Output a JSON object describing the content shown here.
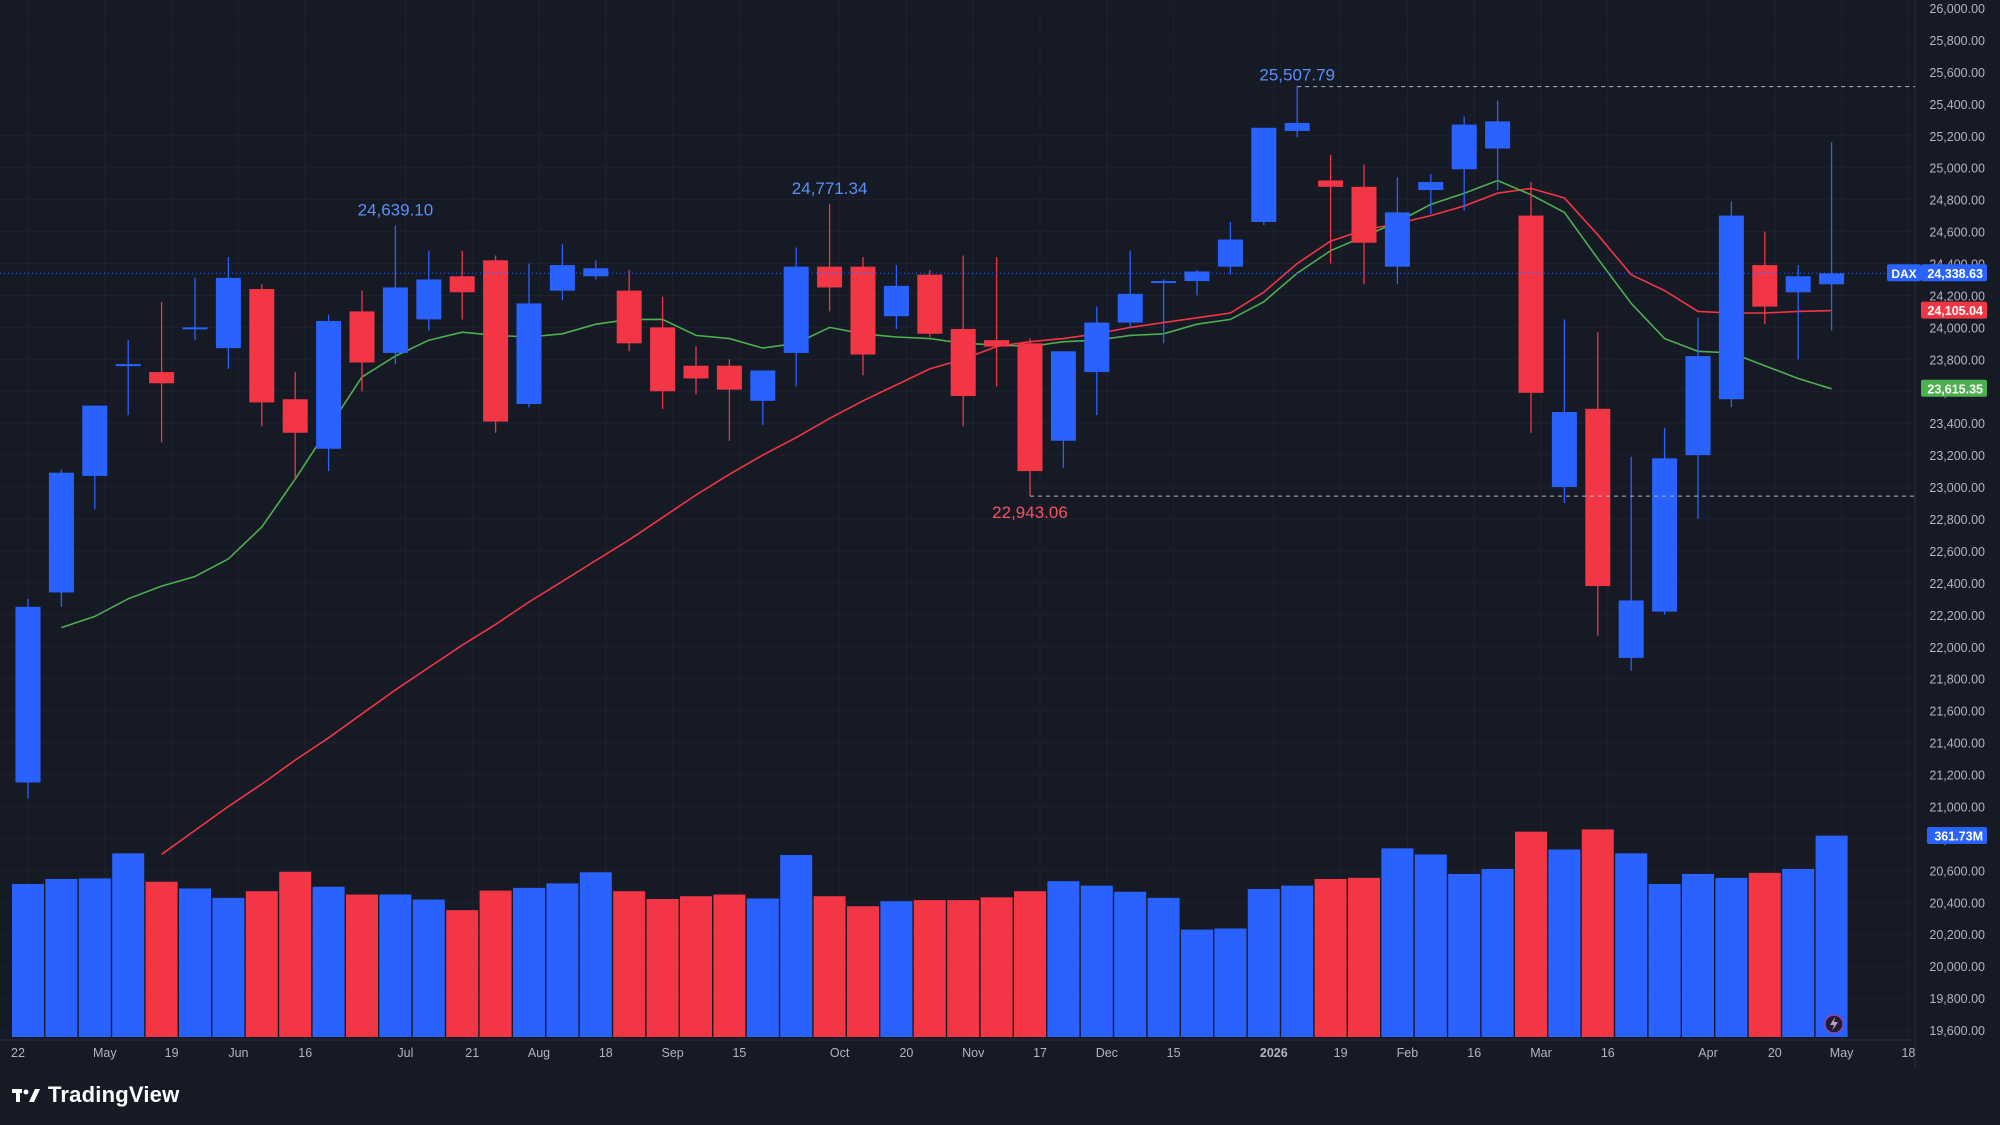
{
  "brand": {
    "name": "TradingView"
  },
  "symbol": "DAX",
  "colors": {
    "bg": "#161a25",
    "up": "#2962ff",
    "down": "#f23645",
    "sma_fast": "#4caf50",
    "sma_slow": "#f23645",
    "axis_text": "#b2b5be",
    "grid": "#1e2230"
  },
  "price_tags": {
    "last": "24,338.63",
    "sma_slow": "24,105.04",
    "sma_fast": "23,615.35",
    "volume": "361.73M"
  },
  "annotations": {
    "high_1": "24,639.10",
    "high_2": "24,771.34",
    "high_3": "25,507.79",
    "low_1": "22,943.06"
  },
  "chart_data": {
    "type": "candlestick",
    "symbol": "DAX",
    "interval": "weekly",
    "y_axis_ticks": [
      "26,000.00",
      "25,800.00",
      "25,600.00",
      "25,400.00",
      "25,200.00",
      "25,000.00",
      "24,800.00",
      "24,600.00",
      "24,400.00",
      "24,200.00",
      "24,000.00",
      "23,800.00",
      "23,600.00",
      "23,400.00",
      "23,200.00",
      "23,000.00",
      "22,800.00",
      "22,600.00",
      "22,400.00",
      "22,200.00",
      "22,000.00",
      "21,800.00",
      "21,600.00",
      "21,400.00",
      "21,200.00",
      "21,000.00",
      "20,800.00",
      "20,600.00",
      "20,400.00",
      "20,200.00",
      "20,000.00",
      "19,800.00",
      "19,600.00"
    ],
    "ylim": [
      19500,
      26050
    ],
    "x_axis_labels": [
      "22",
      "May",
      "19",
      "Jun",
      "16",
      "Jul",
      "21",
      "Aug",
      "18",
      "Sep",
      "15",
      "Oct",
      "20",
      "Nov",
      "17",
      "Dec",
      "15",
      "2026",
      "19",
      "Feb",
      "16",
      "Mar",
      "16",
      "Apr",
      "20",
      "May",
      "18"
    ],
    "x_axis_label_bar_index": [
      0,
      2.3,
      4.3,
      6.3,
      8.3,
      11.3,
      13.3,
      15.3,
      17.3,
      19.3,
      21.3,
      24.3,
      26.3,
      28.3,
      30.3,
      32.3,
      34.3,
      37.3,
      39.3,
      41.3,
      43.3,
      45.3,
      47.3,
      50.3,
      52.3,
      54.3,
      56.3
    ],
    "candles": [
      {
        "o": 21150,
        "h": 22300,
        "l": 21050,
        "c": 22250
      },
      {
        "o": 22340,
        "h": 23110,
        "l": 22250,
        "c": 23090
      },
      {
        "o": 23070,
        "h": 23510,
        "l": 22860,
        "c": 23510
      },
      {
        "o": 23770,
        "h": 23920,
        "l": 23450,
        "c": 23770
      },
      {
        "o": 23720,
        "h": 24160,
        "l": 23280,
        "c": 23650
      },
      {
        "o": 24000,
        "h": 24310,
        "l": 23920,
        "c": 24000
      },
      {
        "o": 23870,
        "h": 24440,
        "l": 23740,
        "c": 24310
      },
      {
        "o": 24240,
        "h": 24270,
        "l": 23380,
        "c": 23530
      },
      {
        "o": 23550,
        "h": 23720,
        "l": 23050,
        "c": 23340
      },
      {
        "o": 23240,
        "h": 24080,
        "l": 23100,
        "c": 24040
      },
      {
        "o": 24100,
        "h": 24230,
        "l": 23600,
        "c": 23780
      },
      {
        "o": 23840,
        "h": 24639.1,
        "l": 23770,
        "c": 24250
      },
      {
        "o": 24050,
        "h": 24480,
        "l": 23980,
        "c": 24300
      },
      {
        "o": 24320,
        "h": 24480,
        "l": 24050,
        "c": 24220
      },
      {
        "o": 24420,
        "h": 24450,
        "l": 23340,
        "c": 23410
      },
      {
        "o": 23520,
        "h": 24400,
        "l": 23500,
        "c": 24150
      },
      {
        "o": 24230,
        "h": 24520,
        "l": 24170,
        "c": 24390
      },
      {
        "o": 24320,
        "h": 24420,
        "l": 24300,
        "c": 24370
      },
      {
        "o": 24230,
        "h": 24360,
        "l": 23850,
        "c": 23900
      },
      {
        "o": 24000,
        "h": 24190,
        "l": 23490,
        "c": 23600
      },
      {
        "o": 23760,
        "h": 23880,
        "l": 23580,
        "c": 23680
      },
      {
        "o": 23760,
        "h": 23800,
        "l": 23290,
        "c": 23610
      },
      {
        "o": 23540,
        "h": 23730,
        "l": 23390,
        "c": 23730
      },
      {
        "o": 23840,
        "h": 24500,
        "l": 23630,
        "c": 24380
      },
      {
        "o": 24380,
        "h": 24771.34,
        "l": 24100,
        "c": 24250
      },
      {
        "o": 24380,
        "h": 24440,
        "l": 23700,
        "c": 23830
      },
      {
        "o": 24070,
        "h": 24390,
        "l": 23990,
        "c": 24260
      },
      {
        "o": 24330,
        "h": 24360,
        "l": 23940,
        "c": 23960
      },
      {
        "o": 23990,
        "h": 24450,
        "l": 23380,
        "c": 23570
      },
      {
        "o": 23920,
        "h": 24440,
        "l": 23630,
        "c": 23880
      },
      {
        "o": 23900,
        "h": 23930,
        "l": 22943.06,
        "c": 23100
      },
      {
        "o": 23290,
        "h": 23840,
        "l": 23120,
        "c": 23850
      },
      {
        "o": 23720,
        "h": 24130,
        "l": 23450,
        "c": 24030
      },
      {
        "o": 24030,
        "h": 24480,
        "l": 24000,
        "c": 24210
      },
      {
        "o": 24290,
        "h": 24300,
        "l": 23900,
        "c": 24290
      },
      {
        "o": 24290,
        "h": 24360,
        "l": 24200,
        "c": 24350
      },
      {
        "o": 24380,
        "h": 24660,
        "l": 24330,
        "c": 24550
      },
      {
        "o": 24660,
        "h": 25240,
        "l": 24640,
        "c": 25250
      },
      {
        "o": 25230,
        "h": 25507.79,
        "l": 25190,
        "c": 25280
      },
      {
        "o": 24920,
        "h": 25080,
        "l": 24400,
        "c": 24880
      },
      {
        "o": 24880,
        "h": 25020,
        "l": 24270,
        "c": 24530
      },
      {
        "o": 24380,
        "h": 24940,
        "l": 24270,
        "c": 24720
      },
      {
        "o": 24860,
        "h": 24960,
        "l": 24710,
        "c": 24910
      },
      {
        "o": 24990,
        "h": 25320,
        "l": 24730,
        "c": 25270
      },
      {
        "o": 25120,
        "h": 25420,
        "l": 24860,
        "c": 25290
      },
      {
        "o": 24700,
        "h": 24910,
        "l": 23340,
        "c": 23590
      },
      {
        "o": 23000,
        "h": 24050,
        "l": 22900,
        "c": 23470
      },
      {
        "o": 23490,
        "h": 23970,
        "l": 22070,
        "c": 22380
      },
      {
        "o": 21930,
        "h": 23190,
        "l": 21850,
        "c": 22290
      },
      {
        "o": 22220,
        "h": 23370,
        "l": 22200,
        "c": 23180
      },
      {
        "o": 23200,
        "h": 24060,
        "l": 22800,
        "c": 23820
      },
      {
        "o": 23550,
        "h": 24790,
        "l": 23500,
        "c": 24700
      },
      {
        "o": 24390,
        "h": 24600,
        "l": 24020,
        "c": 24130
      },
      {
        "o": 24220,
        "h": 24390,
        "l": 23800,
        "c": 24320
      },
      {
        "o": 24270,
        "h": 25160,
        "l": 23980,
        "c": 24338.63
      }
    ],
    "sma_fast": [
      null,
      22120,
      22190,
      22300,
      22380,
      22440,
      22550,
      22750,
      23050,
      23370,
      23690,
      23820,
      23920,
      23970,
      23950,
      23940,
      23960,
      24020,
      24050,
      24050,
      23950,
      23930,
      23870,
      23900,
      24000,
      23960,
      23940,
      23930,
      23900,
      23890,
      23880,
      23910,
      23920,
      23950,
      23960,
      24020,
      24050,
      24160,
      24340,
      24480,
      24570,
      24660,
      24770,
      24840,
      24920,
      24830,
      24720,
      24430,
      24150,
      23930,
      23850,
      23840,
      23760,
      23680,
      23615.35
    ],
    "sma_slow": [
      null,
      null,
      null,
      null,
      20700,
      20850,
      21000,
      21140,
      21290,
      21430,
      21580,
      21730,
      21870,
      22010,
      22140,
      22280,
      22410,
      22540,
      22670,
      22810,
      22950,
      23080,
      23200,
      23310,
      23430,
      23540,
      23640,
      23740,
      23800,
      23880,
      23910,
      23930,
      23960,
      24000,
      24030,
      24060,
      24090,
      24220,
      24400,
      24540,
      24610,
      24650,
      24700,
      24760,
      24840,
      24870,
      24810,
      24580,
      24330,
      24230,
      24100,
      24090,
      24090,
      24100,
      24105.04
    ],
    "volume": [
      275,
      284,
      285,
      330,
      279,
      267,
      250,
      262,
      297,
      270,
      256,
      256,
      247,
      228,
      263,
      268,
      276,
      296,
      262,
      248,
      253,
      256,
      249,
      327,
      253,
      235,
      244,
      246,
      246,
      251,
      262,
      280,
      272,
      261,
      250,
      193,
      195,
      266,
      272,
      284,
      286,
      339,
      328,
      293,
      302,
      369,
      337,
      373,
      330,
      275,
      293,
      286,
      295,
      302,
      361.73
    ],
    "volume_ymax": 400
  }
}
